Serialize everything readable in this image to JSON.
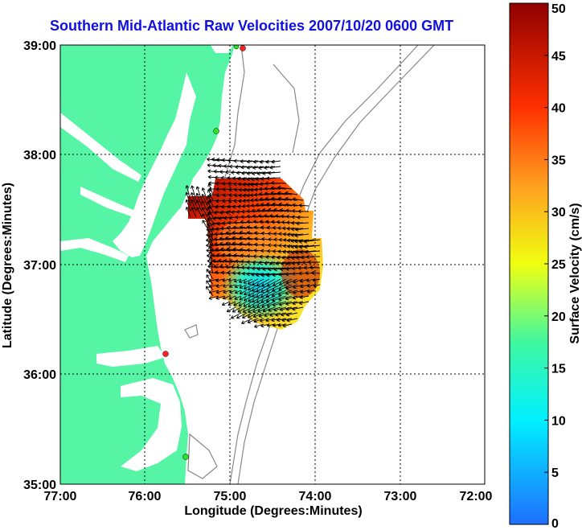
{
  "title": "Southern Mid-Atlantic Raw Velocities 2007/10/20 0600 GMT",
  "axes": {
    "xlabel": "Longitude (Degrees:Minutes)",
    "ylabel": "Latitude (Degrees:Minutes)",
    "x_ticks": [
      "77:00",
      "76:00",
      "75:00",
      "74:00",
      "73:00",
      "72:00"
    ],
    "y_ticks": [
      "39:00",
      "38:00",
      "37:00",
      "36:00",
      "35:00"
    ]
  },
  "colorbar": {
    "label": "Surface Velocity (cm/s)",
    "ticks": [
      "0",
      "5",
      "10",
      "15",
      "20",
      "25",
      "30",
      "35",
      "40",
      "45",
      "50"
    ],
    "min": 0,
    "max": 50
  },
  "colors": {
    "title": "#1010e0",
    "land": "#55f5a5",
    "water": "#ffffff",
    "grid": "#000000",
    "bathymetry": "#888888",
    "arrow": "#000000",
    "site_red": "#ff2020",
    "site_green": "#30e030"
  }
}
